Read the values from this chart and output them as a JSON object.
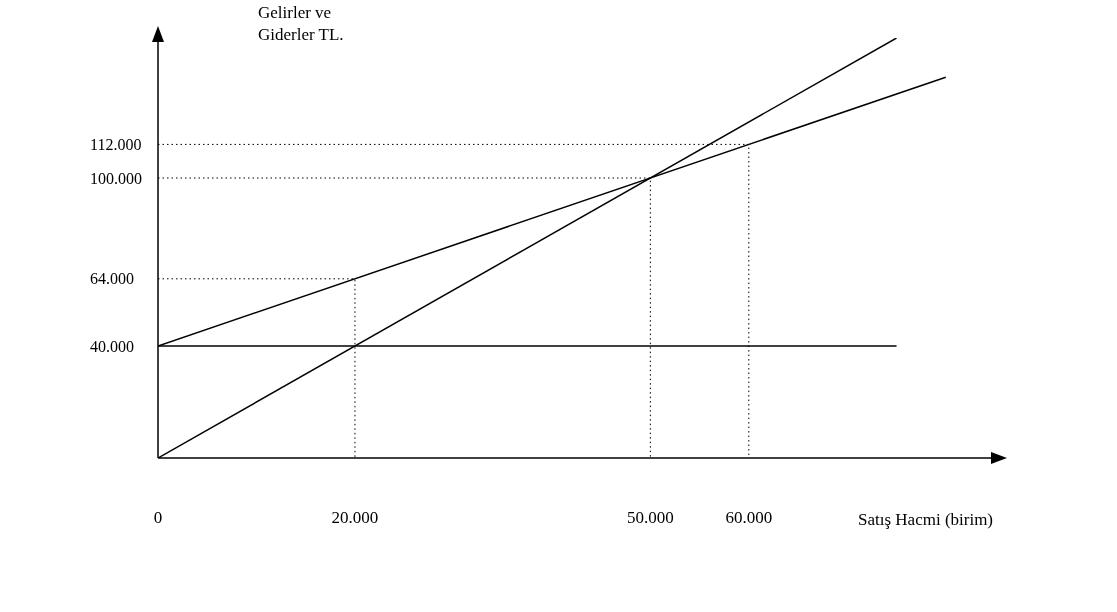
{
  "chart_data": {
    "type": "line",
    "xlabel": "Satış Hacmi (birim)",
    "ylabel": "Gelirler ve Giderler TL.",
    "xlim": [
      0,
      85000
    ],
    "ylim": [
      0,
      150000
    ],
    "xticks": [
      0,
      {
        "value": 20000,
        "label": "20.000"
      },
      {
        "value": 50000,
        "label": "50.000"
      },
      {
        "value": 60000,
        "label": "60.000"
      }
    ],
    "yticks": [
      {
        "value": 40000,
        "label": "40.000"
      },
      {
        "value": 64000,
        "label": "64.000"
      },
      {
        "value": 100000,
        "label": "100.000"
      },
      {
        "value": 112000,
        "label": "112.000"
      }
    ],
    "series": [
      {
        "color": "#000000",
        "line_style": "solid",
        "x": [
          0,
          75000
        ],
        "values": [
          40000,
          40000
        ]
      },
      {
        "color": "#000000",
        "line_style": "solid",
        "x": [
          0,
          75000
        ],
        "values": [
          0,
          150000
        ]
      },
      {
        "color": "#000000",
        "line_style": "solid",
        "x": [
          0,
          80000
        ],
        "values": [
          40000,
          136000
        ]
      },
      {
        "color": "#000000",
        "line_style": "dotted",
        "x": [
          0,
          20000,
          20000
        ],
        "values": [
          64000,
          64000,
          0
        ]
      },
      {
        "color": "#000000",
        "line_style": "dotted",
        "x": [
          0,
          50000,
          50000
        ],
        "values": [
          100000,
          100000,
          0
        ]
      },
      {
        "color": "#000000",
        "line_style": "dotted",
        "x": [
          0,
          60000,
          60000
        ],
        "values": [
          112000,
          112000,
          0
        ]
      }
    ]
  }
}
